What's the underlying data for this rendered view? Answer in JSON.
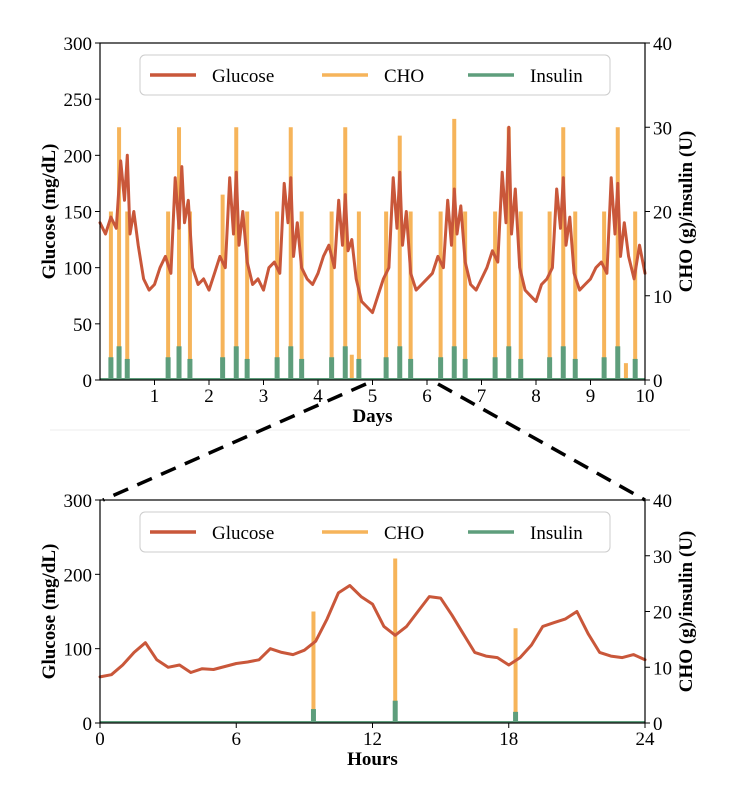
{
  "colors": {
    "glucose": "#c9573a",
    "cho": "#f6b45a",
    "insulin": "#5e9e7c"
  },
  "chart_data": [
    {
      "id": "top",
      "type": "line",
      "xlabel": "Days",
      "ylabel": "Glucose (mg/dL)",
      "y2label": "CHO (g)/insulin (U)",
      "xlim": [
        0,
        10
      ],
      "ylim": [
        0,
        300
      ],
      "y2lim": [
        0,
        40
      ],
      "xticks": [
        1,
        2,
        3,
        4,
        5,
        6,
        7,
        8,
        9,
        10
      ],
      "yticks": [
        0,
        50,
        100,
        150,
        200,
        250,
        300
      ],
      "y2ticks": [
        0,
        10,
        20,
        30,
        40
      ],
      "legend": {
        "position": "top",
        "entries": [
          "Glucose",
          "CHO",
          "Insulin"
        ]
      },
      "grid": false,
      "series": [
        {
          "name": "Glucose",
          "x": [
            0,
            0.1,
            0.2,
            0.3,
            0.38,
            0.45,
            0.5,
            0.55,
            0.62,
            0.7,
            0.8,
            0.9,
            1.0,
            1.1,
            1.2,
            1.3,
            1.38,
            1.45,
            1.5,
            1.55,
            1.62,
            1.7,
            1.8,
            1.9,
            2.0,
            2.1,
            2.2,
            2.3,
            2.38,
            2.45,
            2.5,
            2.55,
            2.62,
            2.7,
            2.8,
            2.9,
            3.0,
            3.1,
            3.2,
            3.3,
            3.38,
            3.45,
            3.5,
            3.55,
            3.62,
            3.7,
            3.8,
            3.9,
            4.0,
            4.1,
            4.2,
            4.3,
            4.38,
            4.45,
            4.5,
            4.55,
            4.62,
            4.7,
            4.8,
            4.9,
            5.0,
            5.1,
            5.2,
            5.3,
            5.38,
            5.45,
            5.5,
            5.55,
            5.62,
            5.7,
            5.8,
            5.9,
            6.0,
            6.1,
            6.2,
            6.3,
            6.38,
            6.45,
            6.5,
            6.55,
            6.62,
            6.7,
            6.8,
            6.9,
            7.0,
            7.1,
            7.2,
            7.3,
            7.38,
            7.45,
            7.5,
            7.55,
            7.62,
            7.7,
            7.8,
            7.9,
            8.0,
            8.1,
            8.2,
            8.3,
            8.38,
            8.45,
            8.5,
            8.55,
            8.62,
            8.7,
            8.8,
            8.9,
            9.0,
            9.1,
            9.2,
            9.3,
            9.38,
            9.45,
            9.5,
            9.55,
            9.62,
            9.7,
            9.8,
            9.9,
            10.0
          ],
          "y": [
            140,
            130,
            145,
            135,
            195,
            160,
            200,
            130,
            150,
            120,
            90,
            80,
            85,
            100,
            110,
            95,
            180,
            135,
            190,
            140,
            160,
            100,
            85,
            90,
            80,
            95,
            110,
            100,
            180,
            130,
            185,
            120,
            150,
            105,
            85,
            90,
            80,
            100,
            105,
            95,
            175,
            140,
            180,
            110,
            140,
            100,
            90,
            85,
            95,
            110,
            120,
            100,
            160,
            120,
            165,
            115,
            125,
            90,
            70,
            65,
            60,
            75,
            90,
            100,
            180,
            135,
            185,
            120,
            150,
            95,
            80,
            85,
            90,
            95,
            110,
            100,
            160,
            120,
            170,
            130,
            155,
            105,
            85,
            80,
            90,
            100,
            115,
            105,
            185,
            140,
            225,
            130,
            170,
            100,
            80,
            75,
            70,
            85,
            90,
            100,
            170,
            135,
            180,
            120,
            145,
            95,
            80,
            85,
            90,
            100,
            105,
            95,
            180,
            130,
            175,
            110,
            140,
            110,
            90,
            120,
            95
          ]
        },
        {
          "name": "CHO",
          "axis": "right",
          "type": "stem",
          "x": [
            0.2,
            0.35,
            0.5,
            1.25,
            1.45,
            1.65,
            2.25,
            2.5,
            2.7,
            3.25,
            3.5,
            3.7,
            4.25,
            4.5,
            4.62,
            4.75,
            5.25,
            5.5,
            5.7,
            6.25,
            6.5,
            6.7,
            7.25,
            7.5,
            7.72,
            8.25,
            8.5,
            8.72,
            9.25,
            9.5,
            9.65,
            9.82
          ],
          "y": [
            20,
            30,
            20,
            20,
            30,
            20,
            22,
            30,
            20,
            20,
            30,
            20,
            20,
            30,
            3,
            20,
            20,
            29,
            20,
            20,
            31,
            20,
            20,
            30,
            20,
            20,
            30,
            20,
            20,
            30,
            2,
            20
          ]
        },
        {
          "name": "Insulin",
          "axis": "right",
          "type": "stem",
          "x": [
            0.2,
            0.35,
            0.5,
            1.25,
            1.45,
            1.65,
            2.25,
            2.5,
            2.7,
            3.25,
            3.5,
            3.7,
            4.25,
            4.5,
            4.75,
            5.25,
            5.5,
            5.7,
            6.25,
            6.5,
            6.7,
            7.25,
            7.5,
            7.72,
            8.25,
            8.5,
            8.72,
            9.25,
            9.5,
            9.82
          ],
          "y": [
            2.7,
            4,
            2.5,
            2.7,
            4,
            2.5,
            2.7,
            4,
            2.5,
            2.7,
            4,
            2.5,
            2.7,
            4,
            2.5,
            2.7,
            4,
            2.5,
            2.7,
            4,
            2.5,
            2.7,
            4,
            2.5,
            2.7,
            4,
            2.5,
            2.7,
            4,
            2.5
          ]
        }
      ]
    },
    {
      "id": "bottom",
      "type": "line",
      "xlabel": "Hours",
      "ylabel": "Glucose (mg/dL)",
      "y2label": "CHO (g)/insulin (U)",
      "xlim": [
        0,
        24
      ],
      "ylim": [
        0,
        300
      ],
      "y2lim": [
        0,
        40
      ],
      "xticks": [
        0,
        6,
        12,
        18,
        24
      ],
      "yticks": [
        0,
        100,
        200,
        300
      ],
      "y2ticks": [
        0,
        10,
        20,
        30,
        40
      ],
      "legend": {
        "position": "top",
        "entries": [
          "Glucose",
          "CHO",
          "Insulin"
        ]
      },
      "grid": false,
      "series": [
        {
          "name": "Glucose",
          "x": [
            0,
            0.5,
            1,
            1.5,
            2,
            2.5,
            3,
            3.5,
            4,
            4.5,
            5,
            5.5,
            6,
            6.5,
            7,
            7.5,
            8,
            8.5,
            9,
            9.5,
            10,
            10.5,
            11,
            11.5,
            12,
            12.5,
            13,
            13.5,
            14,
            14.5,
            15,
            15.5,
            16,
            16.5,
            17,
            17.5,
            18,
            18.5,
            19,
            19.5,
            20,
            20.5,
            21,
            21.5,
            22,
            22.5,
            23,
            23.5,
            24
          ],
          "y": [
            62,
            65,
            78,
            95,
            108,
            85,
            75,
            78,
            68,
            73,
            72,
            76,
            80,
            82,
            85,
            100,
            95,
            92,
            98,
            110,
            140,
            175,
            185,
            170,
            160,
            130,
            118,
            130,
            150,
            170,
            168,
            145,
            120,
            95,
            90,
            88,
            78,
            88,
            105,
            130,
            135,
            140,
            150,
            120,
            95,
            90,
            88,
            92,
            85
          ]
        },
        {
          "name": "CHO",
          "axis": "right",
          "type": "stem",
          "x": [
            9.4,
            13.0,
            18.3
          ],
          "y": [
            20,
            29.5,
            17
          ]
        },
        {
          "name": "Insulin",
          "axis": "right",
          "type": "stem",
          "x": [
            9.4,
            13.0,
            18.3
          ],
          "y": [
            2.5,
            4,
            2
          ]
        }
      ]
    }
  ]
}
